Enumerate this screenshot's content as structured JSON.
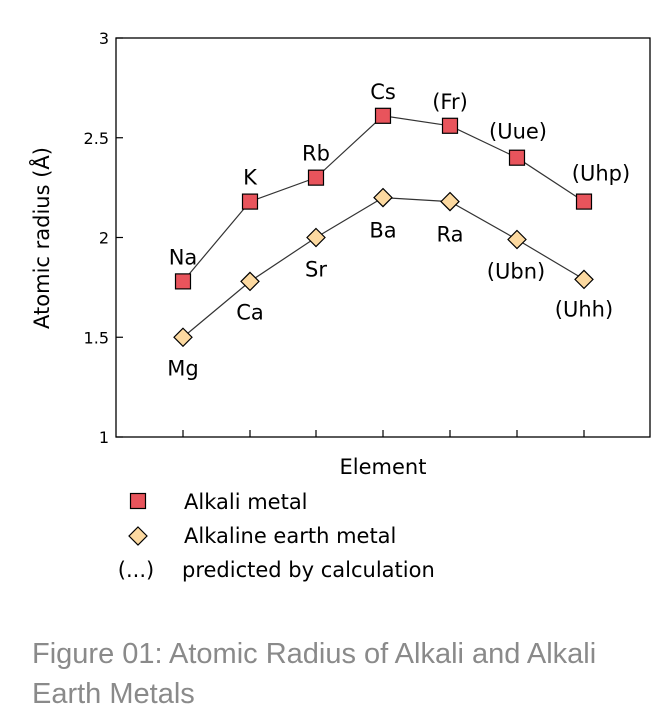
{
  "chart_data": {
    "type": "line",
    "title": "",
    "xlabel": "Element",
    "ylabel": "Atomic radius (Å)",
    "ylim": [
      1,
      3
    ],
    "yticks": [
      "1",
      "1.5",
      "2",
      "2.5",
      "3"
    ],
    "x_positions": 7,
    "grid": false,
    "series": [
      {
        "name": "Alkali metal",
        "color": "#e8545c",
        "marker": "square",
        "points": [
          {
            "label": "Na",
            "value": 1.78
          },
          {
            "label": "K",
            "value": 2.18
          },
          {
            "label": "Rb",
            "value": 2.3
          },
          {
            "label": "Cs",
            "value": 2.61
          },
          {
            "label": "(Fr)",
            "value": 2.56
          },
          {
            "label": "(Uue)",
            "value": 2.4
          },
          {
            "label": "(Uhp)",
            "value": 2.18
          }
        ]
      },
      {
        "name": "Alkaline earth metal",
        "color": "#fcd9a0",
        "marker": "diamond",
        "points": [
          {
            "label": "Mg",
            "value": 1.5
          },
          {
            "label": "Ca",
            "value": 1.78
          },
          {
            "label": "Sr",
            "value": 2.0
          },
          {
            "label": "Ba",
            "value": 2.2
          },
          {
            "label": "Ra",
            "value": 2.18
          },
          {
            "label": "(Ubn)",
            "value": 1.99
          },
          {
            "label": "(Uhh)",
            "value": 1.79
          }
        ]
      }
    ],
    "legend": {
      "placement": "bottom-left",
      "note_symbol": "(...)",
      "note_text": "predicted by calculation"
    }
  },
  "caption": "Figure 01: Atomic Radius of Alkali and Alkali Earth Metals"
}
